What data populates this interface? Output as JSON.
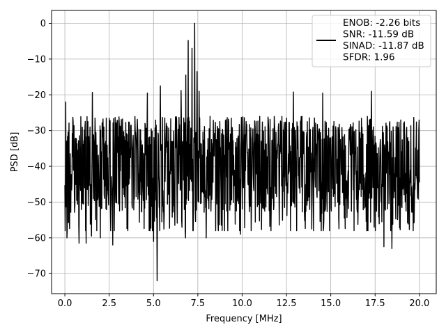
{
  "chart_data": {
    "type": "line",
    "title": "",
    "xlabel": "Frequency [MHz]",
    "ylabel": "PSD [dB]",
    "xlim": [
      -0.75,
      20.95
    ],
    "ylim": [
      -75.6,
      3.6
    ],
    "x_ticks": [
      0.0,
      2.5,
      5.0,
      7.5,
      10.0,
      12.5,
      15.0,
      17.5,
      20.0
    ],
    "x_tick_labels": [
      "0.0",
      "2.5",
      "5.0",
      "7.5",
      "10.0",
      "12.5",
      "15.0",
      "17.5",
      "20.0"
    ],
    "y_ticks": [
      0,
      -10,
      -20,
      -30,
      -40,
      -50,
      -60,
      -70
    ],
    "y_tick_labels": [
      "0",
      "−10",
      "−20",
      "−30",
      "−40",
      "−50",
      "−60",
      "−70"
    ],
    "grid": true,
    "legend_position": "top-right",
    "legend_lines": [
      "ENOB: -2.26 bits",
      "SNR: -11.59 dB",
      "SINAD: -11.87 dB",
      "SFDR: 1.96"
    ],
    "series": [
      {
        "color": "#000000",
        "x_range": [
          0.0,
          20.0
        ],
        "num_points": 1200,
        "noise_floor_band_db": [
          -45,
          -24
        ],
        "peaks": [
          {
            "x": 7.32,
            "y": 0.0
          },
          {
            "x": 6.95,
            "y": -4.8
          },
          {
            "x": 7.18,
            "y": -7.0
          },
          {
            "x": 6.82,
            "y": -14.5
          },
          {
            "x": 7.45,
            "y": -13.5
          },
          {
            "x": 7.58,
            "y": -19.0
          },
          {
            "x": 5.38,
            "y": -17.5
          },
          {
            "x": 6.55,
            "y": -18.8
          },
          {
            "x": 0.05,
            "y": -22.0
          },
          {
            "x": 1.55,
            "y": -19.3
          },
          {
            "x": 4.65,
            "y": -19.5
          },
          {
            "x": 12.9,
            "y": -19.2
          },
          {
            "x": 14.55,
            "y": -19.5
          },
          {
            "x": 17.3,
            "y": -19.0
          }
        ],
        "dips": [
          {
            "x": 5.2,
            "y": -72.0
          },
          {
            "x": 5.0,
            "y": -61.0
          },
          {
            "x": 5.35,
            "y": -58.0
          },
          {
            "x": 0.12,
            "y": -60.0
          },
          {
            "x": 0.25,
            "y": -55.0
          },
          {
            "x": 0.8,
            "y": -61.5
          },
          {
            "x": 1.2,
            "y": -61.5
          },
          {
            "x": 1.5,
            "y": -59.5
          },
          {
            "x": 2.0,
            "y": -60.0
          },
          {
            "x": 2.7,
            "y": -62.0
          },
          {
            "x": 4.95,
            "y": -57.0
          },
          {
            "x": 6.8,
            "y": -60.0
          },
          {
            "x": 7.98,
            "y": -60.0
          },
          {
            "x": 9.9,
            "y": -59.0
          },
          {
            "x": 14.6,
            "y": -57.0
          },
          {
            "x": 18.0,
            "y": -62.5
          },
          {
            "x": 18.45,
            "y": -63.0
          },
          {
            "x": 17.45,
            "y": -57.0
          }
        ]
      }
    ]
  }
}
